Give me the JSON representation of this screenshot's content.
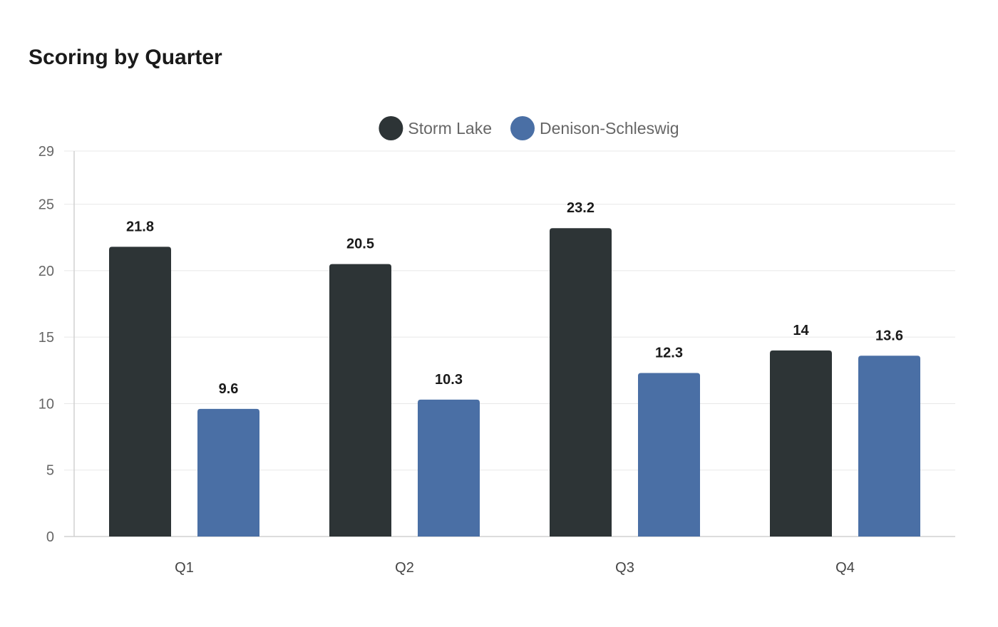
{
  "chart_data": {
    "type": "bar",
    "title": "Scoring by Quarter",
    "categories": [
      "Q1",
      "Q2",
      "Q3",
      "Q4"
    ],
    "series": [
      {
        "name": "Storm Lake",
        "color": "#2d3436",
        "values": [
          21.8,
          20.5,
          23.2,
          14
        ]
      },
      {
        "name": "Denison-Schleswig",
        "color": "#4a6fa5",
        "values": [
          9.6,
          10.3,
          12.3,
          13.6
        ]
      }
    ],
    "yticks": [
      0,
      5,
      10,
      15,
      20,
      25,
      29
    ],
    "ylim": [
      0,
      29
    ],
    "xlabel": "",
    "ylabel": "",
    "grid": true,
    "legend_position": "top-center"
  }
}
